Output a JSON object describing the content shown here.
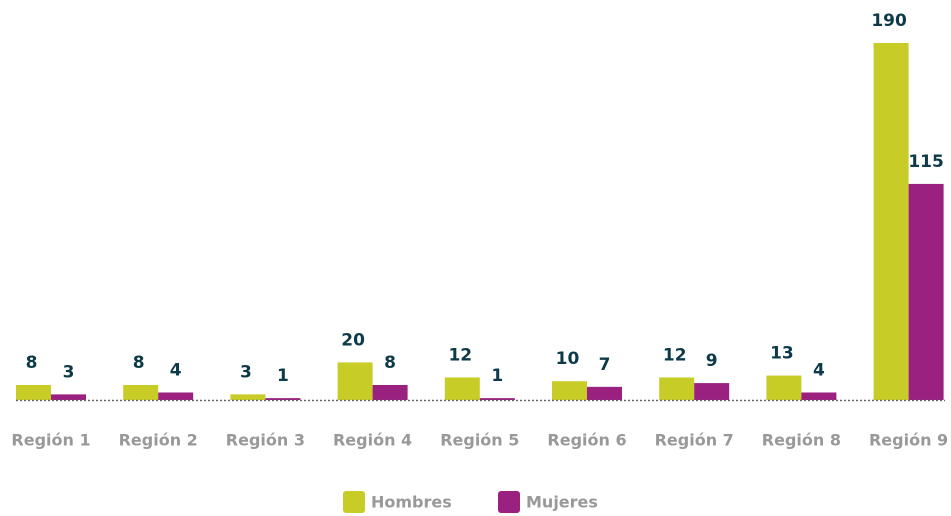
{
  "chart_data": {
    "type": "bar",
    "categories": [
      "Región 1",
      "Región 2",
      "Región 3",
      "Región 4",
      "Región 5",
      "Región 6",
      "Región 7",
      "Región 8",
      "Región 9"
    ],
    "series": [
      {
        "name": "Hombres",
        "color": "#c8cc26",
        "values": [
          8,
          8,
          3,
          20,
          12,
          10,
          12,
          13,
          190
        ]
      },
      {
        "name": "Mujeres",
        "color": "#9a2180",
        "values": [
          3,
          4,
          1,
          8,
          1,
          7,
          9,
          4,
          115
        ]
      }
    ],
    "ylim": [
      0,
      190
    ]
  }
}
